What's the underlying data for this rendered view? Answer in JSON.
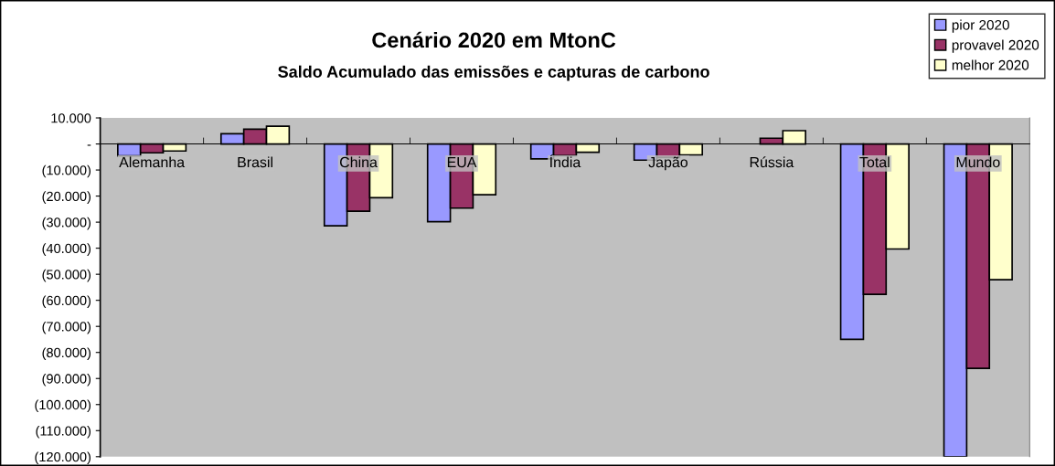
{
  "chart_data": {
    "type": "bar",
    "title": "Cenário 2020 em MtonC",
    "subtitle": "Saldo Acumulado das emissões e capturas de carbono",
    "categories": [
      "Alemanha",
      "Brasil",
      "China",
      "EUA",
      "Índia",
      "Japão",
      "Rússia",
      "Total",
      "Mundo"
    ],
    "series": [
      {
        "name": "pior 2020",
        "color": "#9999ff",
        "values": [
          -4600,
          3900,
          -31400,
          -29800,
          -5700,
          -6200,
          null,
          -75000,
          -120000
        ]
      },
      {
        "name": "provavel 2020",
        "color": "#993366",
        "values": [
          -3400,
          5700,
          -25800,
          -24600,
          -4500,
          -5200,
          2200,
          -57700,
          -86100
        ]
      },
      {
        "name": "melhor 2020",
        "color": "#ffffcc",
        "values": [
          -2700,
          6800,
          -20600,
          -19500,
          -3200,
          -4200,
          5100,
          -40300,
          -52100
        ]
      }
    ],
    "ylim": [
      -120000,
      10000
    ],
    "yticks": [
      {
        "value": 10000,
        "label": "10.000"
      },
      {
        "value": 0,
        "label": "-"
      },
      {
        "value": -10000,
        "label": "(10.000)"
      },
      {
        "value": -20000,
        "label": "(20.000)"
      },
      {
        "value": -30000,
        "label": "(30.000)"
      },
      {
        "value": -40000,
        "label": "(40.000)"
      },
      {
        "value": -50000,
        "label": "(50.000)"
      },
      {
        "value": -60000,
        "label": "(60.000)"
      },
      {
        "value": -70000,
        "label": "(70.000)"
      },
      {
        "value": -80000,
        "label": "(80.000)"
      },
      {
        "value": -90000,
        "label": "(90.000)"
      },
      {
        "value": -100000,
        "label": "(100.000)"
      },
      {
        "value": -110000,
        "label": "(110.000)"
      },
      {
        "value": -120000,
        "label": "(120.000)"
      }
    ],
    "grid": false,
    "legend": "top right"
  }
}
